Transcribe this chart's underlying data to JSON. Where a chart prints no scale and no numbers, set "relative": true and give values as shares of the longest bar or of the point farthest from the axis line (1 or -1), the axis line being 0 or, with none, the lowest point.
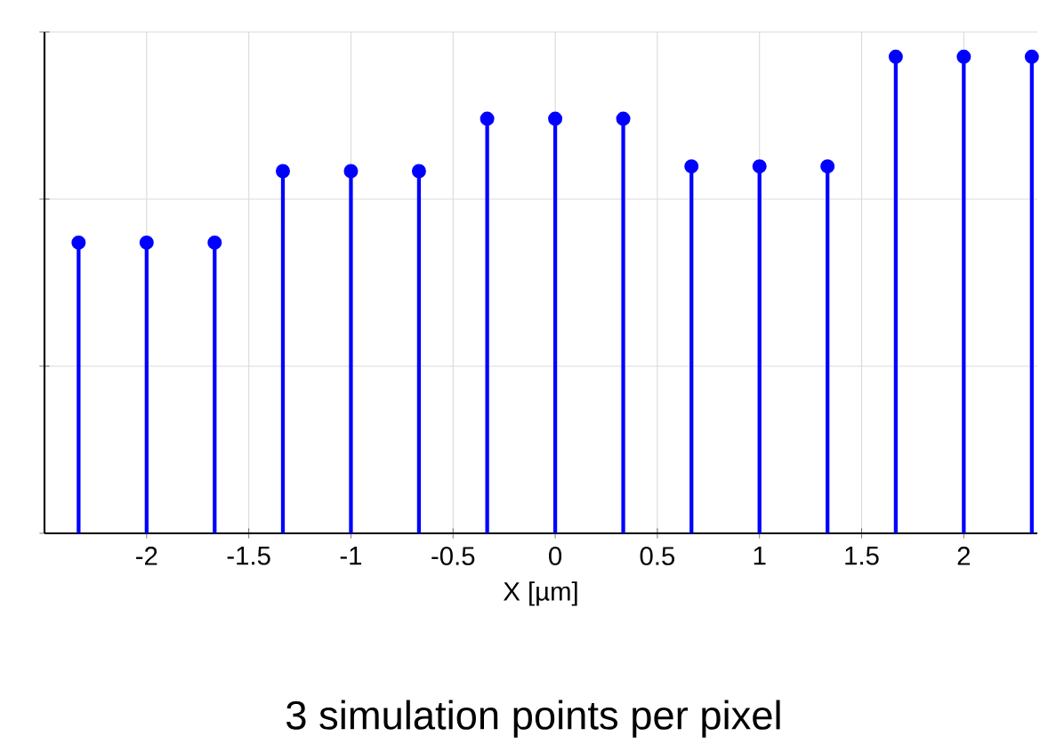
{
  "chart_data": {
    "type": "lollipop",
    "relative": true,
    "color": "#0000ff",
    "marker": "circle",
    "grid": true,
    "tick_labels": "x",
    "xlabel": "X [µm]",
    "x": [
      -2.333,
      -2,
      -1.667,
      -1.333,
      -1,
      -0.667,
      -0.333,
      0,
      0.333,
      0.667,
      1,
      1.333,
      1.667,
      2,
      2.333
    ],
    "values": [
      0.61,
      0.61,
      0.61,
      0.76,
      0.76,
      0.76,
      0.87,
      0.87,
      0.87,
      0.77,
      0.77,
      0.77,
      1,
      1,
      1
    ],
    "xlim": [
      -2.5,
      2.36
    ],
    "xticks": [
      -2,
      -1.5,
      -1,
      -0.5,
      0,
      0.5,
      1,
      1.5,
      2
    ],
    "annotations": [
      "3 simulation points per pixel"
    ]
  }
}
